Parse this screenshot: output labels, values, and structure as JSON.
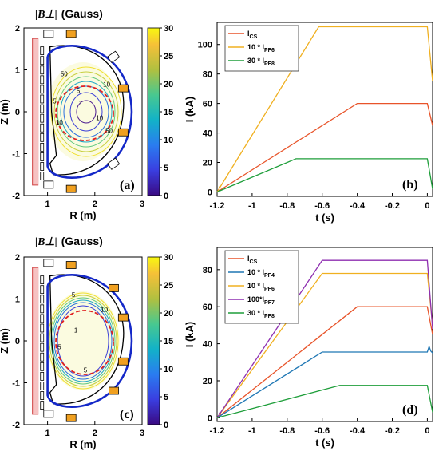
{
  "chart_data": [
    {
      "id": "a",
      "type": "heatmap",
      "title_symbol": "|B⊥|",
      "title_unit": "(Gauss)",
      "xlabel": "R (m)",
      "ylabel": "Z (m)",
      "xlim": [
        0.5,
        3
      ],
      "ylim": [
        -2,
        2
      ],
      "xticks": [
        "1",
        "2",
        "3"
      ],
      "yticks": [
        "2",
        "1",
        "0",
        "-1",
        "-2"
      ],
      "colorbar": {
        "range": [
          0,
          30
        ],
        "ticks": [
          "30",
          "25",
          "20",
          "15",
          "10",
          "5",
          "0"
        ]
      },
      "contour_labels": [
        "50",
        "10",
        "5",
        "1",
        "5",
        "10",
        "50",
        "10"
      ],
      "panel_label": "(a)"
    },
    {
      "id": "b",
      "type": "line",
      "xlabel": "t (s)",
      "ylabel": "I (kA)",
      "xlim": [
        -1.2,
        0.03
      ],
      "ylim": [
        -3,
        115
      ],
      "xticks": [
        "-1.2",
        "-1",
        "-0.8",
        "-0.6",
        "-0.4",
        "-0.2",
        "0"
      ],
      "yticks": [
        "0",
        "20",
        "40",
        "60",
        "80",
        "100"
      ],
      "legend_position": "top-left",
      "panel_label": "(b)",
      "series": [
        {
          "name": "I",
          "sub": "CS",
          "color": "#e8542a",
          "points": [
            [
              -1.2,
              0
            ],
            [
              -0.4,
              60
            ],
            [
              0.0,
              60
            ],
            [
              0.03,
              45
            ]
          ]
        },
        {
          "name": "10 * I",
          "sub": "PF6",
          "color": "#f0b020",
          "points": [
            [
              -1.2,
              0
            ],
            [
              -0.62,
              112
            ],
            [
              0.0,
              112
            ],
            [
              0.03,
              75
            ]
          ]
        },
        {
          "name": "30 * I",
          "sub": "PF8",
          "color": "#1e9e3a",
          "points": [
            [
              -1.2,
              0
            ],
            [
              -0.75,
              22.5
            ],
            [
              0.0,
              22.5
            ],
            [
              0.03,
              2
            ]
          ]
        }
      ]
    },
    {
      "id": "c",
      "type": "heatmap",
      "title_symbol": "|B⊥|",
      "title_unit": "(Gauss)",
      "xlabel": "R (m)",
      "ylabel": "Z (m)",
      "xlim": [
        0.5,
        3
      ],
      "ylim": [
        -2,
        2
      ],
      "xticks": [
        "1",
        "2",
        "3"
      ],
      "yticks": [
        "2",
        "1",
        "0",
        "-1",
        "-2"
      ],
      "colorbar": {
        "range": [
          0,
          30
        ],
        "ticks": [
          "30",
          "25",
          "20",
          "15",
          "10",
          "5",
          "0"
        ]
      },
      "contour_labels": [
        "5",
        "1",
        "5",
        "10",
        "5"
      ],
      "panel_label": "(c)"
    },
    {
      "id": "d",
      "type": "line",
      "xlabel": "t (s)",
      "ylabel": "I (kA)",
      "xlim": [
        -1.2,
        0.03
      ],
      "ylim": [
        -2,
        92
      ],
      "xticks": [
        "-1.2",
        "-1",
        "-0.8",
        "-0.6",
        "-0.4",
        "-0.2",
        "0"
      ],
      "yticks": [
        "0",
        "20",
        "40",
        "60",
        "80"
      ],
      "legend_position": "top-left",
      "panel_label": "(d)",
      "series": [
        {
          "name": "I",
          "sub": "CS",
          "color": "#e8542a",
          "points": [
            [
              -1.2,
              0
            ],
            [
              -0.4,
              60
            ],
            [
              0.0,
              60
            ],
            [
              0.03,
              45
            ]
          ]
        },
        {
          "name": "10 * I",
          "sub": "PF4",
          "color": "#1f77b4",
          "points": [
            [
              -1.2,
              0
            ],
            [
              -0.6,
              35.5
            ],
            [
              0.0,
              35.5
            ],
            [
              0.01,
              38.5
            ],
            [
              0.02,
              36
            ],
            [
              0.03,
              35
            ]
          ]
        },
        {
          "name": "10 * I",
          "sub": "PF6",
          "color": "#f0b020",
          "points": [
            [
              -1.2,
              0
            ],
            [
              -0.6,
              78
            ],
            [
              0.0,
              78
            ],
            [
              0.03,
              50
            ]
          ]
        },
        {
          "name": "100*I",
          "sub": "PF7",
          "color": "#8e2fb0",
          "points": [
            [
              -1.2,
              0
            ],
            [
              -0.6,
              85
            ],
            [
              0.0,
              85
            ],
            [
              0.03,
              48
            ]
          ]
        },
        {
          "name": "30 * I",
          "sub": "PF8",
          "color": "#1e9e3a",
          "points": [
            [
              -1.2,
              0
            ],
            [
              -0.5,
              17.5
            ],
            [
              0.0,
              17.5
            ],
            [
              0.03,
              3
            ]
          ]
        }
      ]
    }
  ]
}
